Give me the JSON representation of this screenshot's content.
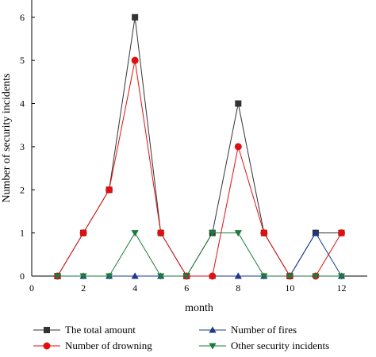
{
  "chart_data": {
    "type": "line",
    "title": "",
    "xlabel": "month",
    "ylabel": "Number of security incidents",
    "x": [
      1,
      2,
      3,
      4,
      5,
      6,
      7,
      8,
      9,
      10,
      11,
      12
    ],
    "xlim": [
      0,
      13
    ],
    "ylim": [
      0,
      6.4
    ],
    "xticks": [
      0,
      2,
      4,
      6,
      8,
      10,
      12
    ],
    "yticks": [
      0,
      1,
      2,
      3,
      4,
      5,
      6
    ],
    "grid": false,
    "legend_position": "bottom",
    "series": [
      {
        "name": "The total amount",
        "color": "#333333",
        "marker": "square",
        "values": [
          0,
          1,
          2,
          6,
          1,
          0,
          1,
          4,
          1,
          0,
          1,
          1
        ]
      },
      {
        "name": "Number of fires",
        "color": "#1a3a8a",
        "marker": "triangle-up",
        "values": [
          0,
          0,
          0,
          0,
          0,
          0,
          0,
          0,
          0,
          0,
          1,
          0
        ]
      },
      {
        "name": "Number of drowning",
        "color": "#e01010",
        "marker": "circle",
        "values": [
          0,
          1,
          2,
          5,
          1,
          0,
          0,
          3,
          1,
          0,
          0,
          1
        ]
      },
      {
        "name": "Other security incidents",
        "color": "#1e7a3c",
        "marker": "triangle-down",
        "values": [
          0,
          0,
          0,
          1,
          0,
          0,
          1,
          1,
          0,
          0,
          0,
          0
        ]
      }
    ]
  }
}
